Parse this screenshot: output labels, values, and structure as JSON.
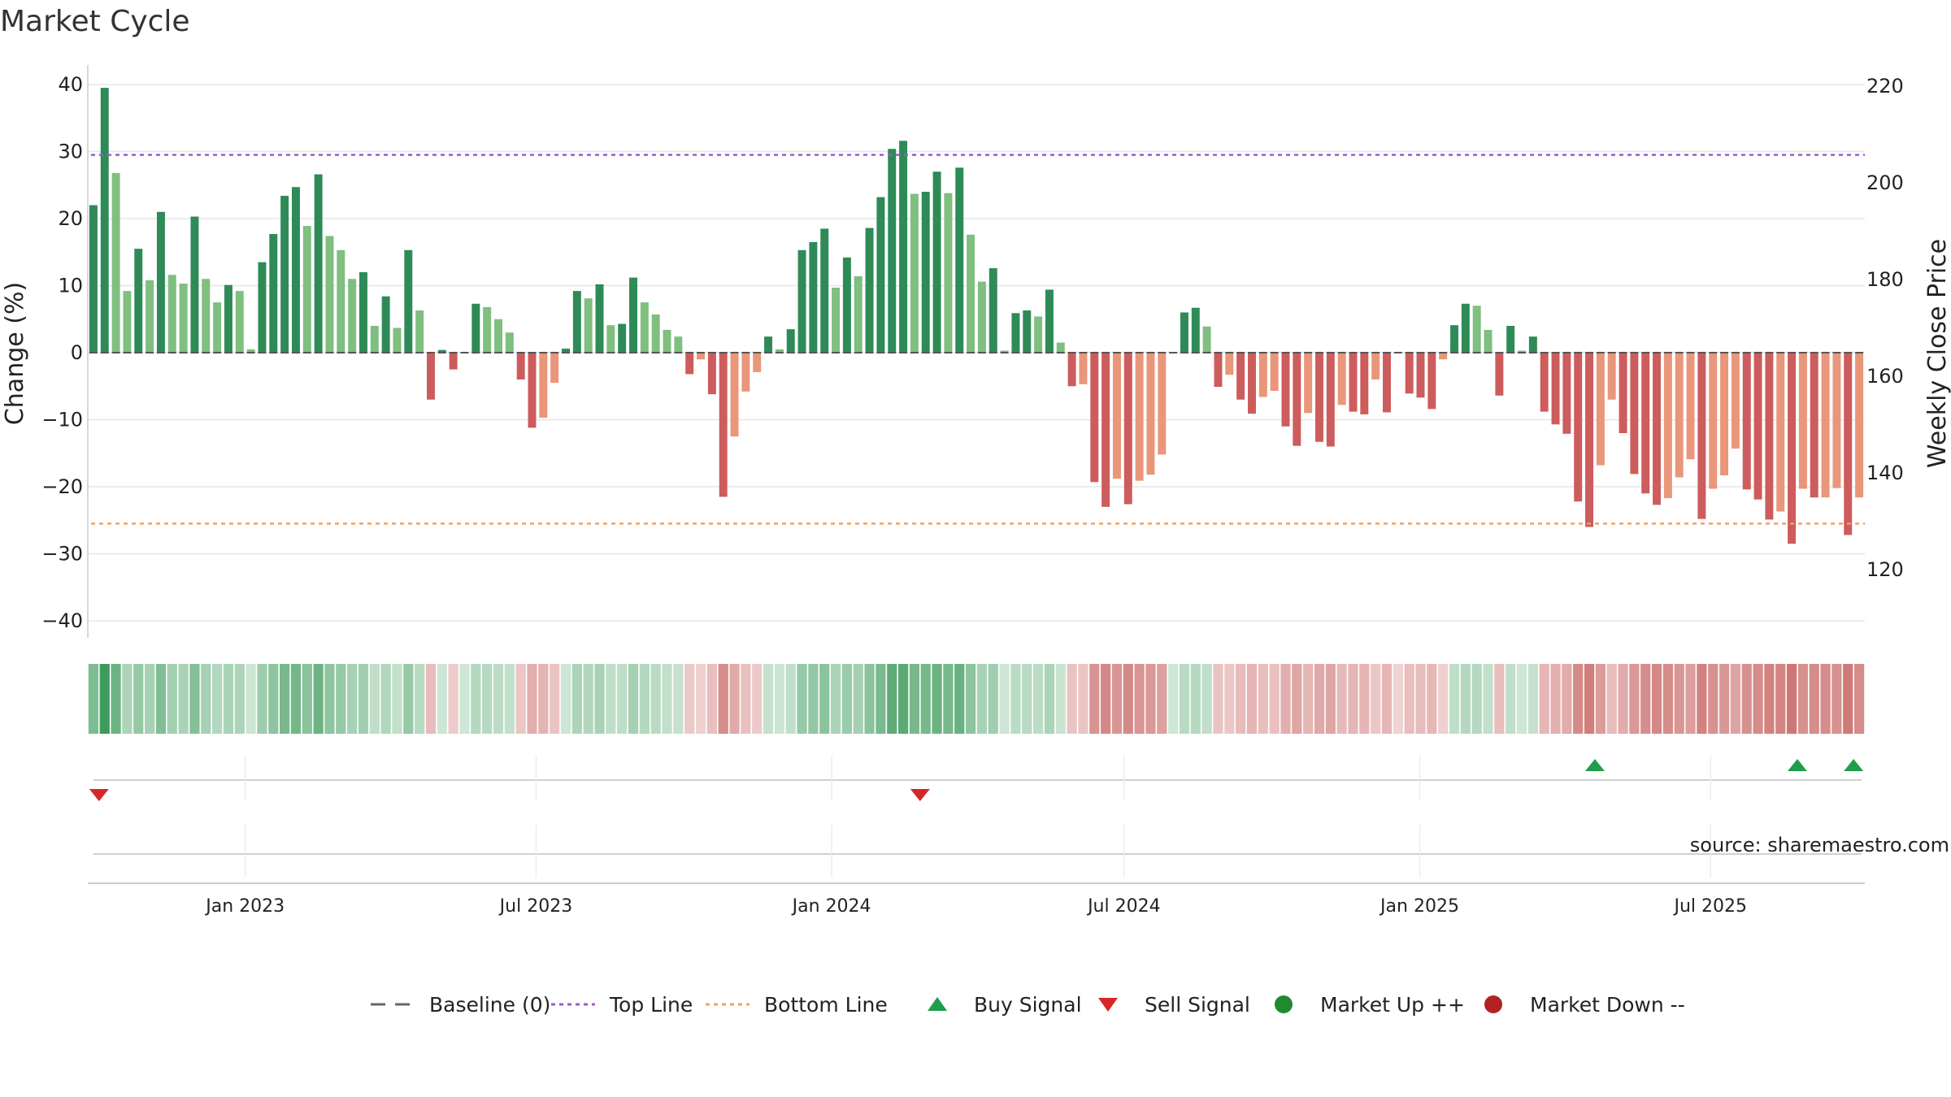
{
  "title": "Market Cycle",
  "source": "source: sharemaestro.com",
  "legend": [
    {
      "label": "Baseline (0)",
      "icon": "dash-line-icon",
      "color": "#666666"
    },
    {
      "label": "Top Line",
      "icon": "dotted-line-icon",
      "color": "#9b59d6"
    },
    {
      "label": "Bottom Line",
      "icon": "dotted-line-icon",
      "color": "#f0a060"
    },
    {
      "label": "Buy Signal",
      "icon": "triangle-up-icon",
      "color": "#1e9e4a"
    },
    {
      "label": "Sell Signal",
      "icon": "triangle-down-icon",
      "color": "#d62728"
    },
    {
      "label": "Market Up ++",
      "icon": "circle-icon",
      "color": "#1f8a2e"
    },
    {
      "label": "Market Down --",
      "icon": "circle-icon",
      "color": "#b22222"
    }
  ],
  "chart_data": {
    "type": "bar",
    "title": "Market Cycle",
    "xlabel": "",
    "ylabel": "Change (%)",
    "y2label": "Weekly Close Price",
    "ylim": [
      -42,
      42
    ],
    "yticks": [
      40,
      30,
      20,
      10,
      0,
      -10,
      -20,
      -30,
      -40
    ],
    "ytick_labels": [
      "40",
      "30",
      "20",
      "10",
      "0",
      "−10",
      "−20",
      "−30",
      "−40"
    ],
    "y2ticks": [
      220,
      200,
      180,
      160,
      140,
      120
    ],
    "top_line": 29.5,
    "bottom_line": -25.5,
    "x_start": "2022-09-25",
    "x_end": "2025-10-05",
    "date_ticks": [
      {
        "date": "2023-01-01",
        "label": "Jan 2023"
      },
      {
        "date": "2023-07-01",
        "label": "Jul 2023"
      },
      {
        "date": "2024-01-01",
        "label": "Jan 2024"
      },
      {
        "date": "2024-07-01",
        "label": "Jul 2024"
      },
      {
        "date": "2025-01-01",
        "label": "Jan 2025"
      },
      {
        "date": "2025-07-01",
        "label": "Jul 2025"
      }
    ],
    "bar_start": "2022-09-25",
    "bar_interval_days": 7,
    "values": [
      22,
      39.5,
      26.8,
      9.2,
      15.5,
      10.8,
      21,
      11.6,
      10.3,
      20.3,
      11,
      7.5,
      10.1,
      9.2,
      0.5,
      13.5,
      17.7,
      23.4,
      24.7,
      18.9,
      26.6,
      17.4,
      15.3,
      11,
      12,
      4,
      8.4,
      3.7,
      15.3,
      6.3,
      -7,
      0.4,
      -2.5,
      0.1,
      7.3,
      6.8,
      5,
      3,
      -4,
      -11.2,
      -9.7,
      -4.5,
      0.6,
      9.2,
      8.1,
      10.2,
      4.1,
      4.3,
      11.2,
      7.5,
      5.7,
      3.4,
      2.4,
      -3.2,
      -1,
      -6.2,
      -21.5,
      -12.5,
      -5.8,
      -2.9,
      2.4,
      0.5,
      3.5,
      15.3,
      16.5,
      18.5,
      9.7,
      14.2,
      11.4,
      18.6,
      23.2,
      30.4,
      31.6,
      23.7,
      24,
      27,
      23.8,
      27.6,
      17.6,
      10.6,
      12.6,
      0.3,
      5.9,
      6.3,
      5.4,
      9.4,
      1.5,
      -5,
      -4.7,
      -19.3,
      -23,
      -18.8,
      -22.6,
      -19.1,
      -18.2,
      -15.2,
      0.1,
      6,
      6.7,
      3.9,
      -5.1,
      -3.3,
      -7,
      -9.1,
      -6.6,
      -5.7,
      -11,
      -13.9,
      -9,
      -13.3,
      -14,
      -7.8,
      -8.8,
      -9.2,
      -4,
      -8.9,
      -0.1,
      -6.1,
      -6.7,
      -8.4,
      -1,
      4.1,
      7.3,
      7,
      3.4,
      -6.4,
      4,
      0.3,
      2.4,
      -8.8,
      -10.7,
      -12.1,
      -22.2,
      -26,
      -16.8,
      -7,
      -12,
      -18.1,
      -21,
      -22.7,
      -21.7,
      -18.6,
      -15.9,
      -24.8,
      -20.3,
      -18.3,
      -14.3,
      -20.4,
      -21.9,
      -24.9,
      -23.7,
      -28.5,
      -20.3,
      -21.6,
      -21.6,
      -20.2,
      -27.2,
      -21.6
    ],
    "buy_signals": [
      "2025-04-20",
      "2025-08-24",
      "2025-09-28"
    ],
    "sell_signals": [
      "2022-10-02",
      "2024-02-25"
    ],
    "colors": {
      "strong_up": "#2e8b57",
      "weak_up": "#7fbf7f",
      "strong_down": "#cd5c5c",
      "weak_down": "#e9967a",
      "top_line": "#9b59d6",
      "bottom_line": "#f0a060",
      "buy": "#1e9e4a",
      "sell": "#d62728"
    }
  }
}
